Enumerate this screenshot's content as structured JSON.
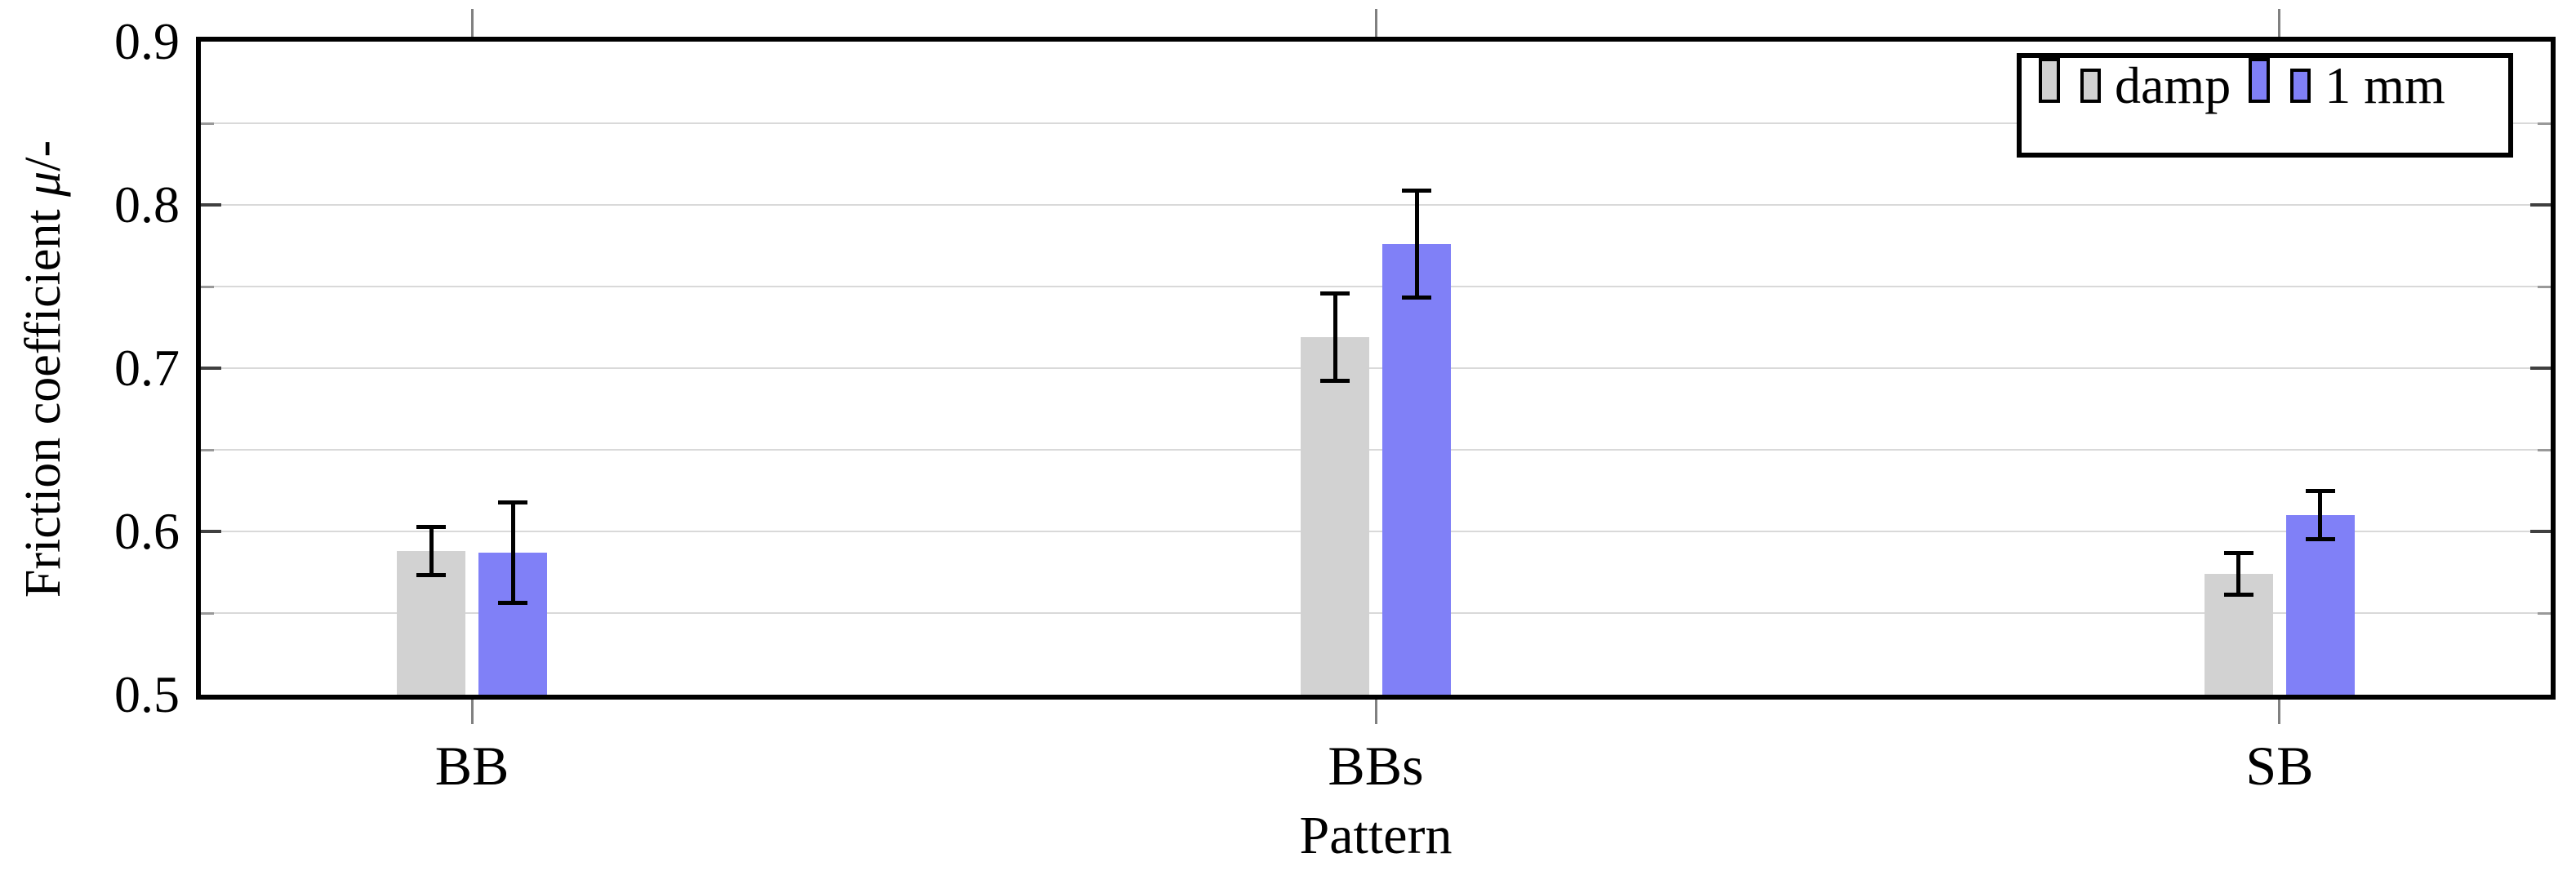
{
  "figure": {
    "background": "#ffffff",
    "frame_color": "#000000",
    "gridline_color": "#d9d9d9"
  },
  "chart_data": {
    "type": "bar",
    "title": "",
    "xlabel": "Pattern",
    "ylabel": "Friction coefficient μ/-",
    "ylabel_parts": {
      "prefix": "Friction coefficient ",
      "mu": "μ",
      "suffix": "/-"
    },
    "categories": [
      "BB",
      "BBs",
      "SB"
    ],
    "series": [
      {
        "name": "damp",
        "color": "#d2d2d2",
        "values": [
          0.588,
          0.719,
          0.574
        ],
        "errors": [
          0.016,
          0.028,
          0.014
        ]
      },
      {
        "name": "1 mm",
        "color": "#8080f7",
        "values": [
          0.587,
          0.776,
          0.61
        ],
        "errors": [
          0.032,
          0.034,
          0.016
        ]
      }
    ],
    "error_bar_color": "#000000",
    "ylim": [
      0.5,
      0.9
    ],
    "yticks": [
      0.5,
      0.6,
      0.7,
      0.8,
      0.9
    ],
    "ytick_labels": [
      "0.5",
      "0.6",
      "0.7",
      "0.8",
      "0.9"
    ],
    "yminor_step": 0.05,
    "grid": true,
    "legend_position": "top-right"
  }
}
